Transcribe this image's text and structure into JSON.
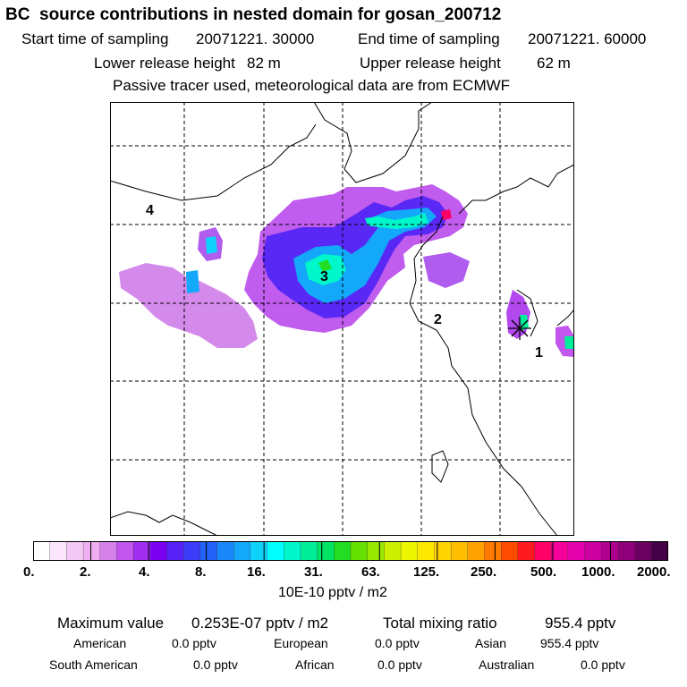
{
  "title": "BC  source contributions in nested domain for gosan_200712",
  "header": {
    "start_label": "Start time of sampling",
    "start_value": "20071221. 30000",
    "end_label": "End time of sampling",
    "end_value": "20071221. 60000",
    "lower_label": "Lower release height",
    "lower_value": "82 m",
    "upper_label": "Upper release height",
    "upper_value": "62 m",
    "note": "Passive tracer used, meteorological data are from ECMWF"
  },
  "map": {
    "labels": [
      "1",
      "2",
      "3",
      "4"
    ],
    "receptor_marker": "asterisk-star"
  },
  "colorbar": {
    "colors": [
      "#ffffff",
      "#fbe6fb",
      "#f4c8f4",
      "#eeaeef",
      "#d482ea",
      "#c155ee",
      "#a02df0",
      "#7a00f2",
      "#5722f5",
      "#3a3cf7",
      "#2262f9",
      "#1a86fa",
      "#14a8fb",
      "#0fd2fb",
      "#00ffff",
      "#00f7cc",
      "#00ee99",
      "#00e466",
      "#22dd22",
      "#66e000",
      "#99e800",
      "#ccf000",
      "#eef500",
      "#ffe800",
      "#ffd400",
      "#ffbe00",
      "#ffa200",
      "#ff7a00",
      "#ff4b00",
      "#ff1a20",
      "#ff0066",
      "#f50099",
      "#e400aa",
      "#cc00a0",
      "#b00090",
      "#90007a",
      "#6a0060",
      "#440044"
    ],
    "tick_labels": [
      "0.",
      "2.",
      "4.",
      "8.",
      "16.",
      "31.",
      "63.",
      "125.",
      "250.",
      "500.",
      "1000.",
      "2000."
    ],
    "unit": "10E-10 pptv / m2"
  },
  "summary": {
    "max_label": "Maximum value",
    "max_value": "0.253E-07 pptv / m2",
    "total_label": "Total mixing ratio",
    "total_value": "955.4 pptv"
  },
  "contributions": [
    {
      "name": "American",
      "value": "0.0 pptv"
    },
    {
      "name": "European",
      "value": "0.0 pptv"
    },
    {
      "name": "Asian",
      "value": "955.4 pptv"
    },
    {
      "name": "South American",
      "value": "0.0 pptv"
    },
    {
      "name": "African",
      "value": "0.0 pptv"
    },
    {
      "name": "Australian",
      "value": "0.0 pptv"
    }
  ]
}
